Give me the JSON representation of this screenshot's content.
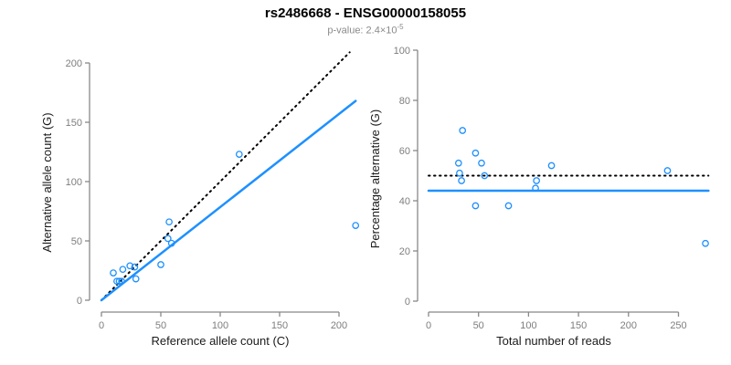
{
  "title": "rs2486668 - ENSG00000158055",
  "subtitle": {
    "label": "p-value: 2.4×10",
    "exponent": "-5"
  },
  "colors": {
    "accent_blue": "#1E90FF",
    "dotted_black": "#000000",
    "axis_gray": "#888888",
    "tick_label_gray": "#7e7e7e",
    "title_black": "#000000",
    "subtitle_gray": "#8a8a8a"
  },
  "chart_data": [
    {
      "type": "scatter",
      "panel": "left",
      "xlabel": "Reference allele count (C)",
      "ylabel": "Alternative allele count (G)",
      "xticks": [
        0,
        50,
        100,
        150,
        200
      ],
      "yticks": [
        0,
        50,
        100,
        150,
        200
      ],
      "xlim": [
        0,
        215
      ],
      "ylim": [
        0,
        210
      ],
      "grid": false,
      "points": [
        [
          10,
          23
        ],
        [
          18,
          26
        ],
        [
          13,
          16
        ],
        [
          24,
          29
        ],
        [
          15,
          16
        ],
        [
          28,
          28
        ],
        [
          17,
          16
        ],
        [
          29,
          18
        ],
        [
          50,
          30
        ],
        [
          59,
          48
        ],
        [
          56,
          52
        ],
        [
          57,
          66
        ],
        [
          116,
          123
        ],
        [
          214,
          63
        ]
      ],
      "lines": [
        {
          "name": "identity-line",
          "style": "dotted",
          "color": "#000000",
          "from": [
            0,
            0
          ],
          "to": [
            209,
            209
          ]
        },
        {
          "name": "fit-line",
          "style": "solid",
          "color": "#1E90FF",
          "from": [
            0,
            0
          ],
          "to": [
            214,
            168
          ]
        }
      ]
    },
    {
      "type": "scatter",
      "panel": "right",
      "xlabel": "Total number of reads",
      "ylabel": "Percentage alternative (G)",
      "xticks": [
        0,
        50,
        100,
        150,
        200,
        250
      ],
      "yticks": [
        0,
        20,
        40,
        60,
        80,
        100
      ],
      "xlim": [
        0,
        280
      ],
      "ylim": [
        0,
        100
      ],
      "grid": false,
      "points": [
        [
          34,
          68
        ],
        [
          47,
          59
        ],
        [
          30,
          55
        ],
        [
          53,
          55
        ],
        [
          31,
          51
        ],
        [
          56,
          50
        ],
        [
          33,
          48
        ],
        [
          47,
          38
        ],
        [
          80,
          38
        ],
        [
          107,
          45
        ],
        [
          108,
          48
        ],
        [
          123,
          54
        ],
        [
          239,
          52
        ],
        [
          277,
          23
        ]
      ],
      "hlines": [
        {
          "name": "expected-line",
          "y": 50,
          "style": "dotted",
          "color": "#000000",
          "xspan": [
            0,
            280
          ]
        },
        {
          "name": "fit-line",
          "y": 44,
          "style": "solid",
          "color": "#1E90FF",
          "xspan": [
            0,
            280
          ]
        }
      ]
    }
  ]
}
